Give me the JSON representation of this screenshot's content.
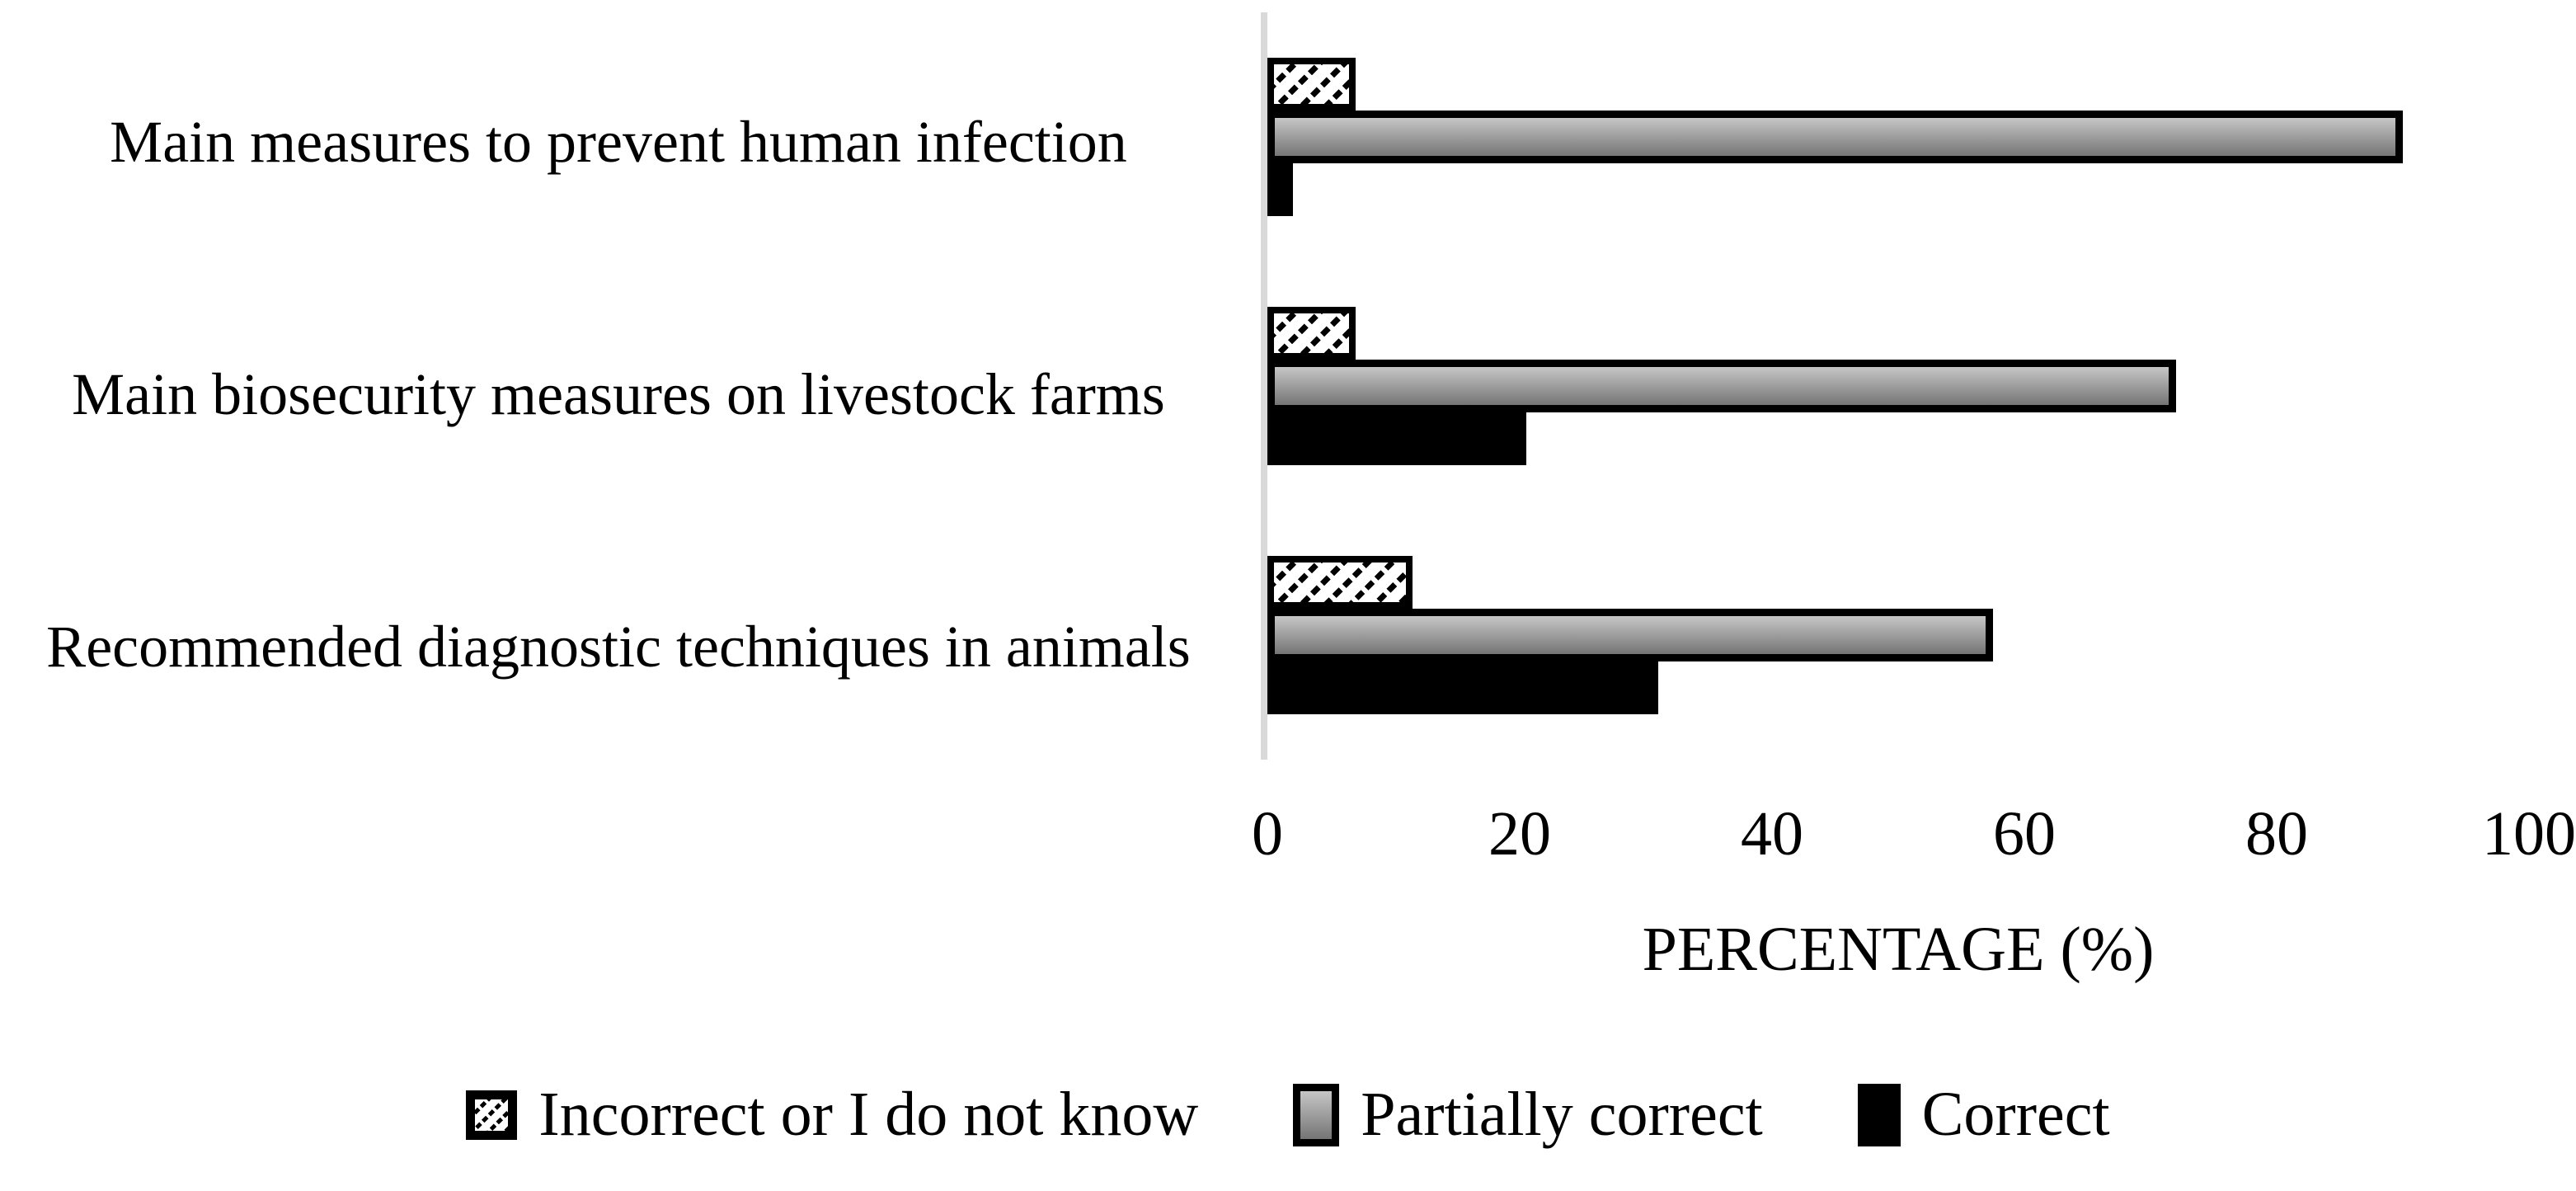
{
  "figure": {
    "background": "#ffffff"
  },
  "chart_data": {
    "type": "bar",
    "orientation": "horizontal",
    "title": "",
    "categories": [
      "Main measures to prevent human infection",
      "Main biosecurity measures on livestock farms",
      "Recommended diagnostic techniques in animals"
    ],
    "series": [
      {
        "name": "Incorrect or I do not know",
        "style": "hatched",
        "values": [
          7,
          7,
          11.5
        ]
      },
      {
        "name": "Partially correct",
        "style": "gray-gradient",
        "values": [
          90,
          72,
          57.5
        ]
      },
      {
        "name": "Correct",
        "style": "black",
        "values": [
          2,
          20.5,
          31
        ]
      }
    ],
    "xlabel": "PERCENTAGE (%)",
    "x_ticks": [
      0,
      20,
      40,
      60,
      80,
      100
    ],
    "xlim": [
      0,
      100
    ],
    "grid": false,
    "legend_position": "bottom",
    "colors": {
      "axis_line": "#d9d9d9",
      "bar_gray_top": "#c6c6c6",
      "bar_gray_bottom": "#757575",
      "bar_black": "#000000",
      "hatch": "#000000",
      "text": "#000000"
    }
  }
}
